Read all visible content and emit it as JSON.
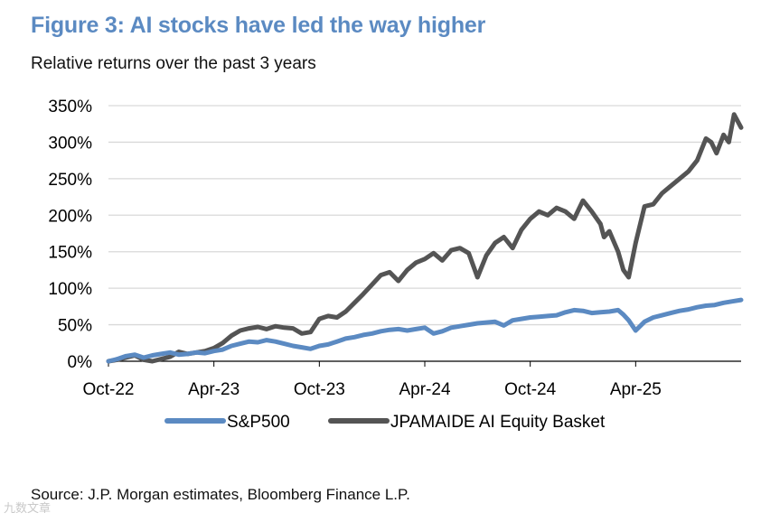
{
  "title": "Figure 3: AI stocks have led the way higher",
  "subtitle": "Relative returns over the past 3 years",
  "source": "Source: J.P. Morgan estimates, Bloomberg Finance L.P.",
  "watermark": "九数文章",
  "colors": {
    "title": "#5b8ac2",
    "sp500": "#5b8ac2",
    "ai_basket": "#545454",
    "grid": "#d9d9d9"
  },
  "chart_data": {
    "type": "line",
    "title": "Figure 3: AI stocks have led the way higher",
    "subtitle": "Relative returns over the past 3 years",
    "xlabel": "",
    "ylabel": "",
    "ylim": [
      0,
      350
    ],
    "yticks": [
      0,
      50,
      100,
      150,
      200,
      250,
      300,
      350
    ],
    "ytick_labels": [
      "0%",
      "50%",
      "100%",
      "150%",
      "200%",
      "250%",
      "300%",
      "350%"
    ],
    "xlim": [
      0,
      36
    ],
    "xticks": [
      0,
      6,
      12,
      18,
      24,
      30
    ],
    "xtick_labels": [
      "Oct-22",
      "Apr-23",
      "Oct-23",
      "Apr-24",
      "Oct-24",
      "Apr-25"
    ],
    "grid": true,
    "legend_position": "bottom",
    "series": [
      {
        "name": "S&P500",
        "x": [
          0,
          0.5,
          1,
          1.5,
          2,
          2.5,
          3,
          3.5,
          4,
          4.5,
          5,
          5.5,
          6,
          6.5,
          7,
          7.5,
          8,
          8.5,
          9,
          9.5,
          10,
          10.5,
          11,
          11.5,
          12,
          12.5,
          13,
          13.5,
          14,
          14.5,
          15,
          15.5,
          16,
          16.5,
          17,
          17.5,
          18,
          18.5,
          19,
          19.5,
          20,
          20.5,
          21,
          21.5,
          22,
          22.5,
          23,
          23.5,
          24,
          24.5,
          25,
          25.5,
          26,
          26.5,
          27,
          27.5,
          28,
          28.5,
          29,
          29.3,
          29.6,
          30,
          30.5,
          31,
          31.5,
          32,
          32.5,
          33,
          33.5,
          34,
          34.5,
          35,
          35.5,
          36
        ],
        "values": [
          0,
          3,
          7,
          9,
          5,
          8,
          10,
          12,
          9,
          10,
          12,
          11,
          14,
          16,
          21,
          24,
          27,
          26,
          29,
          27,
          24,
          21,
          19,
          17,
          21,
          23,
          27,
          31,
          33,
          36,
          38,
          41,
          43,
          44,
          42,
          44,
          46,
          38,
          41,
          46,
          48,
          50,
          52,
          53,
          54,
          49,
          56,
          58,
          60,
          61,
          62,
          63,
          67,
          70,
          69,
          66,
          67,
          68,
          70,
          64,
          56,
          42,
          54,
          60,
          63,
          66,
          69,
          71,
          74,
          76,
          77,
          80,
          82,
          84
        ]
      },
      {
        "name": "JPAMAIDE AI Equity Basket",
        "x": [
          0,
          0.5,
          1,
          1.5,
          2,
          2.5,
          3,
          3.5,
          4,
          4.5,
          5,
          5.5,
          6,
          6.5,
          7,
          7.5,
          8,
          8.5,
          9,
          9.5,
          10,
          10.5,
          11,
          11.5,
          12,
          12.5,
          13,
          13.5,
          14,
          14.5,
          15,
          15.5,
          16,
          16.5,
          17,
          17.5,
          18,
          18.5,
          19,
          19.5,
          20,
          20.5,
          21,
          21.5,
          22,
          22.5,
          23,
          23.5,
          24,
          24.5,
          25,
          25.5,
          26,
          26.5,
          27,
          27.5,
          28,
          28.2,
          28.5,
          29,
          29.3,
          29.6,
          30,
          30.5,
          31,
          31.5,
          32,
          32.5,
          33,
          33.5,
          34,
          34.3,
          34.6,
          35,
          35.3,
          35.6,
          36
        ],
        "values": [
          0,
          2,
          5,
          8,
          2,
          0,
          3,
          6,
          13,
          10,
          12,
          14,
          18,
          25,
          35,
          42,
          45,
          47,
          44,
          48,
          46,
          45,
          38,
          40,
          58,
          62,
          60,
          68,
          80,
          92,
          105,
          118,
          122,
          110,
          125,
          135,
          140,
          148,
          138,
          152,
          155,
          148,
          115,
          145,
          162,
          170,
          155,
          180,
          195,
          205,
          200,
          210,
          205,
          195,
          220,
          205,
          188,
          170,
          178,
          150,
          125,
          115,
          162,
          212,
          215,
          230,
          240,
          250,
          260,
          275,
          305,
          300,
          285,
          310,
          300,
          338,
          320
        ]
      }
    ]
  }
}
